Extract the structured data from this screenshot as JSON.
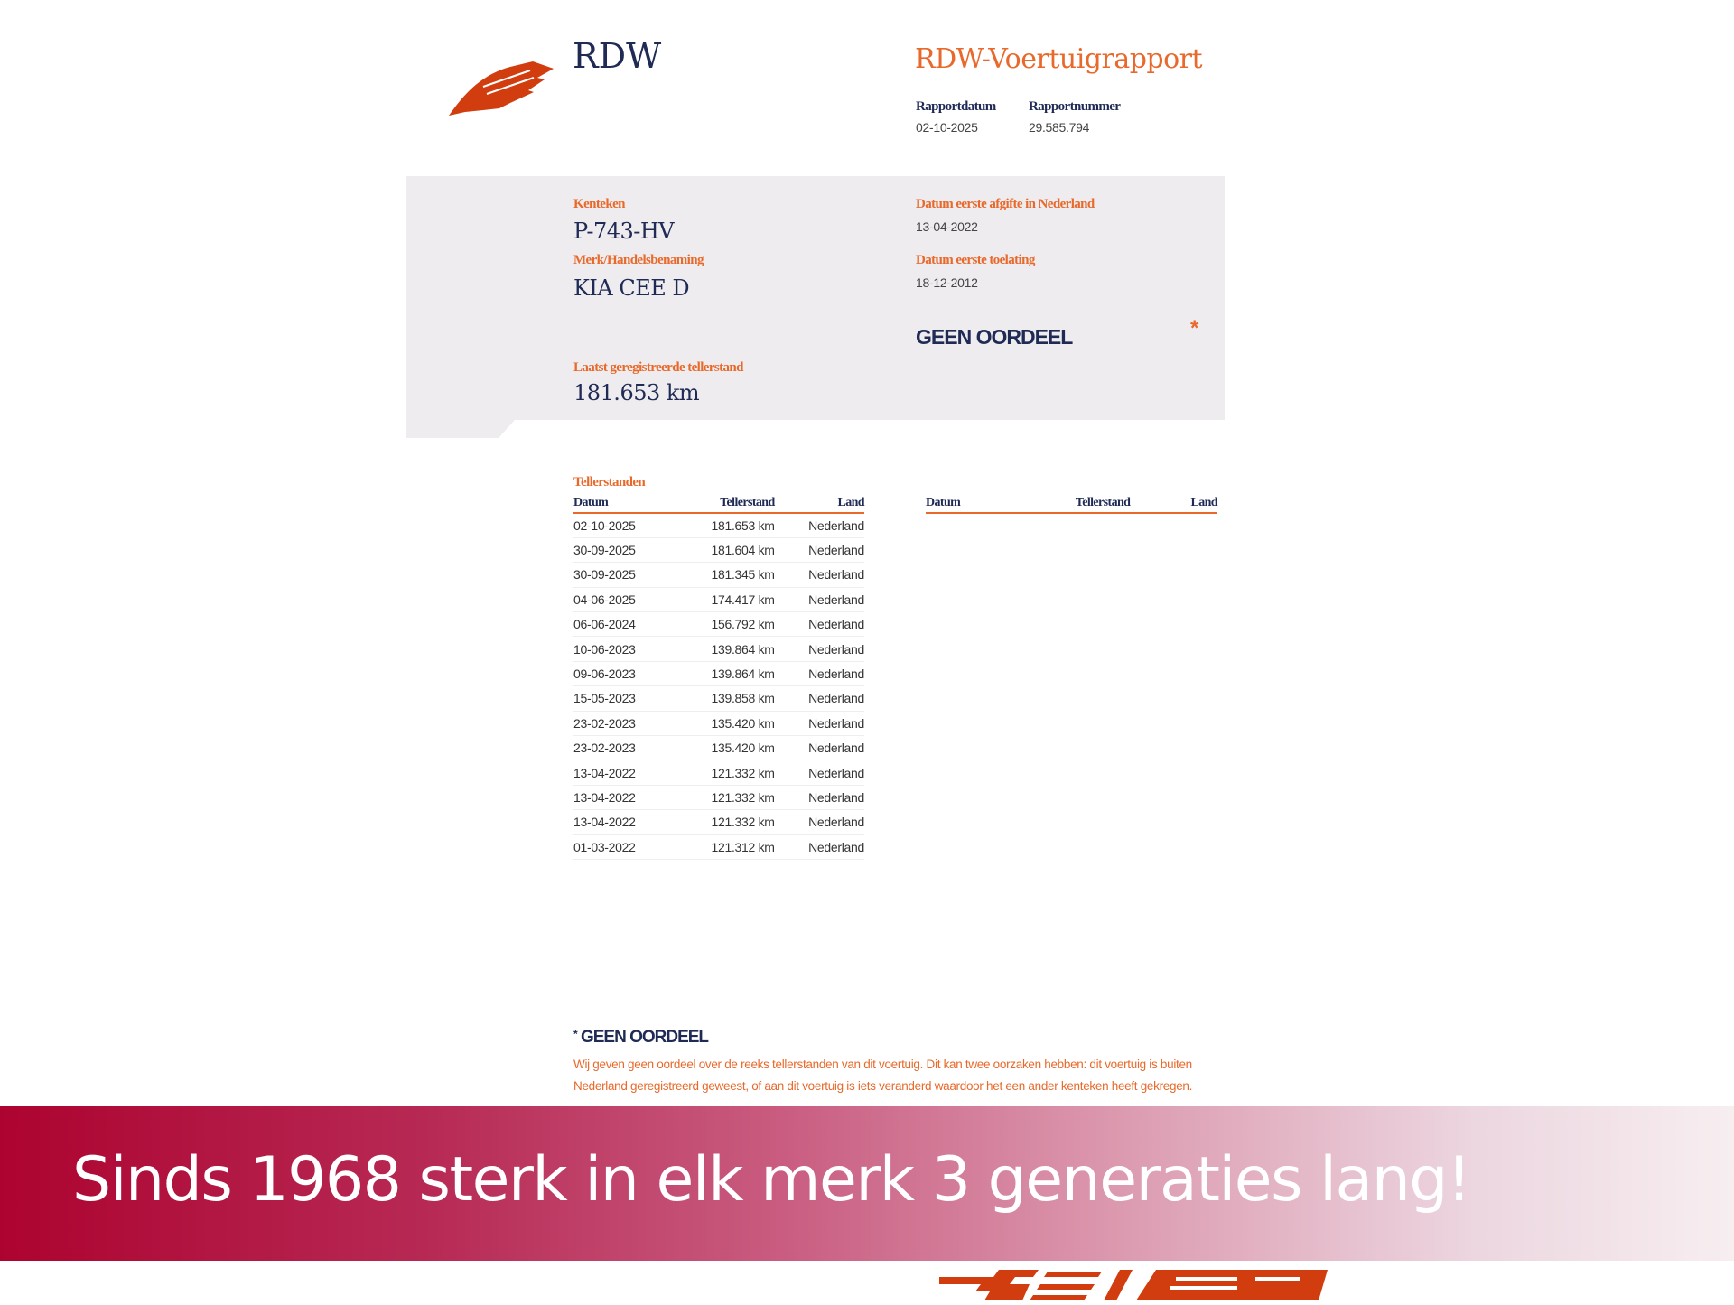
{
  "header": {
    "org": "RDW",
    "title": "RDW-Voertuigrapport",
    "report_date_label": "Rapportdatum",
    "report_date": "02-10-2025",
    "report_number_label": "Rapportnummer",
    "report_number": "29.585.794"
  },
  "vehicle": {
    "plate_label": "Kenteken",
    "plate": "P-743-HV",
    "brand_label": "Merk/Handelsbenaming",
    "brand": "KIA CEE D",
    "first_nl_label": "Datum eerste afgifte in Nederland",
    "first_nl": "13-04-2022",
    "first_admission_label": "Datum eerste toelating",
    "first_admission": "18-12-2012",
    "verdict": "GEEN OORDEEL",
    "verdict_mark": "*",
    "last_odo_label": "Laatst geregistreerde tellerstand",
    "last_odo": "181.653 km"
  },
  "odometer": {
    "section_label": "Tellerstanden",
    "columns": [
      "Datum",
      "Tellerstand",
      "Land"
    ],
    "rows": [
      [
        "02-10-2025",
        "181.653 km",
        "Nederland"
      ],
      [
        "30-09-2025",
        "181.604 km",
        "Nederland"
      ],
      [
        "30-09-2025",
        "181.345 km",
        "Nederland"
      ],
      [
        "04-06-2025",
        "174.417 km",
        "Nederland"
      ],
      [
        "06-06-2024",
        "156.792 km",
        "Nederland"
      ],
      [
        "10-06-2023",
        "139.864 km",
        "Nederland"
      ],
      [
        "09-06-2023",
        "139.864 km",
        "Nederland"
      ],
      [
        "15-05-2023",
        "139.858 km",
        "Nederland"
      ],
      [
        "23-02-2023",
        "135.420 km",
        "Nederland"
      ],
      [
        "23-02-2023",
        "135.420 km",
        "Nederland"
      ],
      [
        "13-04-2022",
        "121.332 km",
        "Nederland"
      ],
      [
        "13-04-2022",
        "121.332 km",
        "Nederland"
      ],
      [
        "13-04-2022",
        "121.332 km",
        "Nederland"
      ],
      [
        "01-03-2022",
        "121.312 km",
        "Nederland"
      ]
    ]
  },
  "footnote": {
    "mark": "*",
    "title": "GEEN OORDEEL",
    "text": "Wij geven geen oordeel over de reeks tellerstanden van dit voertuig. Dit kan twee oorzaken hebben: dit voertuig is buiten Nederland geregistreerd geweest, of aan dit voertuig is iets veranderd waardoor het een ander kenteken heeft gekregen."
  },
  "banner": {
    "text": "Sinds 1968 sterk in elk merk 3 generaties lang!",
    "colors": [
      "#ad0330",
      "#f7eef0"
    ]
  },
  "colors": {
    "accent": "#e8692b",
    "navy": "#1f2a55",
    "logo": "#d23d10"
  }
}
